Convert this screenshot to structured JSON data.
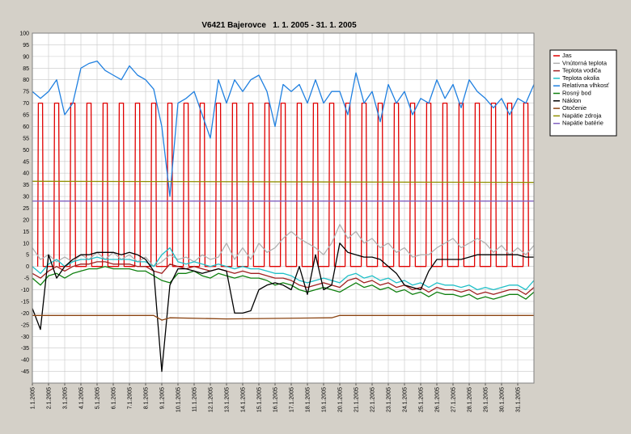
{
  "chart_data": {
    "type": "line",
    "title": "V6421 Bajerovce   1. 1. 2005 - 31. 1. 2005",
    "xlim": [
      1,
      32
    ],
    "xticks": [
      {
        "value": 1,
        "label": "1.1.2005"
      },
      {
        "value": 2,
        "label": "2.1.2005"
      },
      {
        "value": 3,
        "label": "3.1.2005"
      },
      {
        "value": 4,
        "label": "4.1.2005"
      },
      {
        "value": 5,
        "label": "5.1.2005"
      },
      {
        "value": 6,
        "label": "6.1.2005"
      },
      {
        "value": 7,
        "label": "7.1.2005"
      },
      {
        "value": 8,
        "label": "8.1.2005"
      },
      {
        "value": 9,
        "label": "9.1.2005"
      },
      {
        "value": 10,
        "label": "10.1.2005"
      },
      {
        "value": 11,
        "label": "11.1.2005"
      },
      {
        "value": 12,
        "label": "12.1.2005"
      },
      {
        "value": 13,
        "label": "13.1.2005"
      },
      {
        "value": 14,
        "label": "14.1.2005"
      },
      {
        "value": 15,
        "label": "15.1.2005"
      },
      {
        "value": 16,
        "label": "16.1.2005"
      },
      {
        "value": 17,
        "label": "17.1.2005"
      },
      {
        "value": 18,
        "label": "18.1.2005"
      },
      {
        "value": 19,
        "label": "19.1.2005"
      },
      {
        "value": 20,
        "label": "20.1.2005"
      },
      {
        "value": 21,
        "label": "21.1.2005"
      },
      {
        "value": 22,
        "label": "22.1.2005"
      },
      {
        "value": 23,
        "label": "23.1.2005"
      },
      {
        "value": 24,
        "label": "24.1.2005"
      },
      {
        "value": 25,
        "label": "25.1.2005"
      },
      {
        "value": 26,
        "label": "26.1.2005"
      },
      {
        "value": 27,
        "label": "27.1.2005"
      },
      {
        "value": 28,
        "label": "28.1.2005"
      },
      {
        "value": 29,
        "label": "29.1.2005"
      },
      {
        "value": 30,
        "label": "30.1.2005"
      },
      {
        "value": 31,
        "label": "31.1.2005"
      }
    ],
    "ylim": [
      -50,
      100
    ],
    "yticks": [
      -45,
      -40,
      -35,
      -30,
      -25,
      -20,
      -15,
      -10,
      -5,
      0,
      5,
      10,
      15,
      20,
      25,
      30,
      35,
      40,
      45,
      50,
      55,
      60,
      65,
      70,
      75,
      80,
      85,
      90,
      95,
      100
    ],
    "grid": true,
    "legend": "right",
    "x": [
      1,
      1.5,
      2,
      2.5,
      3,
      3.5,
      4,
      4.5,
      5,
      5.5,
      6,
      6.5,
      7,
      7.5,
      8,
      8.5,
      9,
      9.5,
      10,
      10.5,
      11,
      11.5,
      12,
      12.5,
      13,
      13.5,
      14,
      14.5,
      15,
      15.5,
      16,
      16.5,
      17,
      17.5,
      18,
      18.5,
      19,
      19.5,
      20,
      20.5,
      21,
      21.5,
      22,
      22.5,
      23,
      23.5,
      24,
      24.5,
      25,
      25.5,
      26,
      26.5,
      27,
      27.5,
      28,
      28.5,
      29,
      29.5,
      30,
      30.5,
      31,
      31.5,
      32
    ],
    "series": [
      {
        "name": "Jas",
        "color": "#e00000",
        "x": [
          1.33,
          1.37,
          1.63,
          1.67,
          2.33,
          2.37,
          2.63,
          2.67,
          3.33,
          3.37,
          3.63,
          3.67,
          4.33,
          4.37,
          4.63,
          4.67,
          5.33,
          5.37,
          5.63,
          5.67,
          6.33,
          6.37,
          6.63,
          6.67,
          7.33,
          7.37,
          7.63,
          7.67,
          8.33,
          8.37,
          8.63,
          8.67,
          9.33,
          9.37,
          9.63,
          9.67,
          10.33,
          10.37,
          10.63,
          10.67,
          11.33,
          11.37,
          11.63,
          11.67,
          12.33,
          12.37,
          12.63,
          12.67,
          13.33,
          13.37,
          13.63,
          13.67,
          14.33,
          14.37,
          14.63,
          14.67,
          15.33,
          15.37,
          15.63,
          15.67,
          16.33,
          16.37,
          16.63,
          16.67,
          17.33,
          17.37,
          17.63,
          17.67,
          18.33,
          18.37,
          18.63,
          18.67,
          19.33,
          19.37,
          19.63,
          19.67,
          20.33,
          20.37,
          20.63,
          20.67,
          21.33,
          21.37,
          21.63,
          21.67,
          22.33,
          22.37,
          22.63,
          22.67,
          23.33,
          23.37,
          23.63,
          23.67,
          24.33,
          24.37,
          24.63,
          24.67,
          25.33,
          25.37,
          25.63,
          25.67,
          26.33,
          26.37,
          26.63,
          26.67,
          27.33,
          27.37,
          27.63,
          27.67,
          28.33,
          28.37,
          28.63,
          28.67,
          29.33,
          29.37,
          29.63,
          29.67,
          30.33,
          30.37,
          30.63,
          30.67,
          31.33,
          31.37,
          31.63,
          31.67
        ],
        "values": [
          0,
          70,
          70,
          0,
          0,
          70,
          70,
          0,
          0,
          70,
          70,
          0,
          0,
          70,
          70,
          0,
          0,
          70,
          70,
          0,
          0,
          70,
          70,
          0,
          0,
          70,
          70,
          0,
          0,
          70,
          70,
          0,
          0,
          70,
          70,
          0,
          0,
          70,
          70,
          0,
          0,
          70,
          70,
          0,
          0,
          70,
          70,
          0,
          0,
          70,
          70,
          0,
          0,
          70,
          70,
          0,
          0,
          70,
          70,
          0,
          0,
          70,
          70,
          0,
          0,
          70,
          70,
          0,
          0,
          70,
          70,
          0,
          0,
          70,
          70,
          0,
          0,
          70,
          70,
          0,
          0,
          70,
          70,
          0,
          0,
          70,
          70,
          0,
          0,
          70,
          70,
          0,
          0,
          70,
          70,
          0,
          0,
          70,
          70,
          0,
          0,
          70,
          70,
          0,
          0,
          70,
          70,
          0,
          0,
          70,
          70,
          0,
          0,
          70,
          70,
          0,
          0,
          70,
          70,
          0,
          0,
          70,
          70,
          0
        ]
      },
      {
        "name": "Vnútorná teplota",
        "color": "#b0b0b0",
        "values": [
          8,
          3,
          5,
          2,
          4,
          2,
          5,
          3,
          6,
          3,
          6,
          3,
          5,
          2,
          4,
          0,
          2,
          5,
          3,
          4,
          2,
          5,
          3,
          4,
          10,
          3,
          8,
          3,
          10,
          6,
          8,
          12,
          15,
          12,
          10,
          8,
          5,
          10,
          18,
          12,
          15,
          10,
          12,
          8,
          10,
          6,
          8,
          4,
          5,
          5,
          8,
          10,
          12,
          8,
          10,
          12,
          10,
          6,
          9,
          5,
          8,
          5,
          9
        ]
      },
      {
        "name": "Teplota vodiča",
        "color": "#a02020",
        "values": [
          -3,
          -5,
          -2,
          0,
          -2,
          0,
          1,
          1,
          2,
          2,
          1,
          1,
          1,
          0,
          0,
          -2,
          -3,
          1,
          0,
          -1,
          0,
          -1,
          -2,
          -1,
          -2,
          -3,
          -2,
          -3,
          -3,
          -4,
          -5,
          -5,
          -6,
          -8,
          -9,
          -8,
          -7,
          -8,
          -9,
          -6,
          -5,
          -7,
          -6,
          -8,
          -7,
          -9,
          -8,
          -10,
          -9,
          -11,
          -9,
          -10,
          -10,
          -11,
          -10,
          -12,
          -11,
          -12,
          -11,
          -10,
          -10,
          -12,
          -9
        ]
      },
      {
        "name": "Teplota okolia",
        "color": "#20c0c8",
        "values": [
          0,
          -3,
          1,
          3,
          0,
          2,
          3,
          3,
          4,
          3,
          3,
          3,
          3,
          2,
          2,
          0,
          5,
          8,
          2,
          1,
          2,
          1,
          0,
          1,
          0,
          -1,
          0,
          -1,
          -1,
          -2,
          -3,
          -3,
          -4,
          -6,
          -7,
          -6,
          -5,
          -6,
          -7,
          -4,
          -3,
          -5,
          -4,
          -6,
          -5,
          -7,
          -6,
          -8,
          -7,
          -9,
          -7,
          -8,
          -8,
          -9,
          -8,
          -10,
          -9,
          -10,
          -9,
          -8,
          -8,
          -10,
          -6
        ]
      },
      {
        "name": "Relatívna vlhkosť",
        "color": "#2080e0",
        "values": [
          75,
          72,
          75,
          80,
          65,
          70,
          85,
          87,
          88,
          84,
          82,
          80,
          86,
          82,
          80,
          76,
          60,
          30,
          70,
          72,
          75,
          65,
          55,
          80,
          70,
          80,
          75,
          80,
          82,
          75,
          60,
          78,
          75,
          78,
          70,
          80,
          70,
          75,
          75,
          65,
          83,
          70,
          75,
          62,
          78,
          70,
          75,
          65,
          72,
          70,
          80,
          72,
          78,
          68,
          80,
          75,
          72,
          68,
          72,
          65,
          72,
          70,
          78
        ]
      },
      {
        "name": "Rosný bod",
        "color": "#108010",
        "values": [
          -5,
          -8,
          -4,
          -3,
          -5,
          -3,
          -2,
          -1,
          -1,
          0,
          -1,
          -1,
          -1,
          -2,
          -2,
          -4,
          -6,
          -7,
          -3,
          -3,
          -2,
          -4,
          -5,
          -3,
          -4,
          -5,
          -4,
          -5,
          -5,
          -6,
          -8,
          -7,
          -8,
          -10,
          -11,
          -10,
          -9,
          -10,
          -11,
          -9,
          -7,
          -9,
          -8,
          -10,
          -9,
          -11,
          -10,
          -12,
          -11,
          -13,
          -11,
          -12,
          -12,
          -13,
          -12,
          -14,
          -13,
          -14,
          -13,
          -12,
          -12,
          -14,
          -11
        ]
      },
      {
        "name": "Náklon",
        "color": "#000000",
        "values": [
          -18,
          -27,
          5,
          -5,
          0,
          3,
          5,
          5,
          6,
          6,
          6,
          5,
          6,
          5,
          3,
          -2,
          -45,
          -8,
          -1,
          -1,
          -2,
          -3,
          -2,
          -1,
          -2,
          -20,
          -20,
          -19,
          -10,
          -8,
          -7,
          -8,
          -10,
          0,
          -12,
          5,
          -10,
          -8,
          10,
          6,
          5,
          4,
          4,
          3,
          0,
          -3,
          -8,
          -9,
          -10,
          -2,
          3,
          3,
          3,
          3,
          4,
          5,
          5,
          5,
          5,
          5,
          5,
          4,
          4
        ]
      },
      {
        "name": "Otočenie",
        "color": "#8b4513",
        "x": [
          1,
          8.5,
          9,
          9.5,
          13,
          19.5,
          20,
          32
        ],
        "values": [
          -21,
          -21,
          -23,
          -22,
          -22.5,
          -22,
          -21,
          -21
        ]
      },
      {
        "name": "Napätie zdroja",
        "color": "#909000",
        "x": [
          1,
          32
        ],
        "values": [
          36.5,
          36
        ]
      },
      {
        "name": "Napätie batérie",
        "color": "#8060c0",
        "x": [
          1,
          32
        ],
        "values": [
          28,
          28
        ]
      }
    ]
  }
}
